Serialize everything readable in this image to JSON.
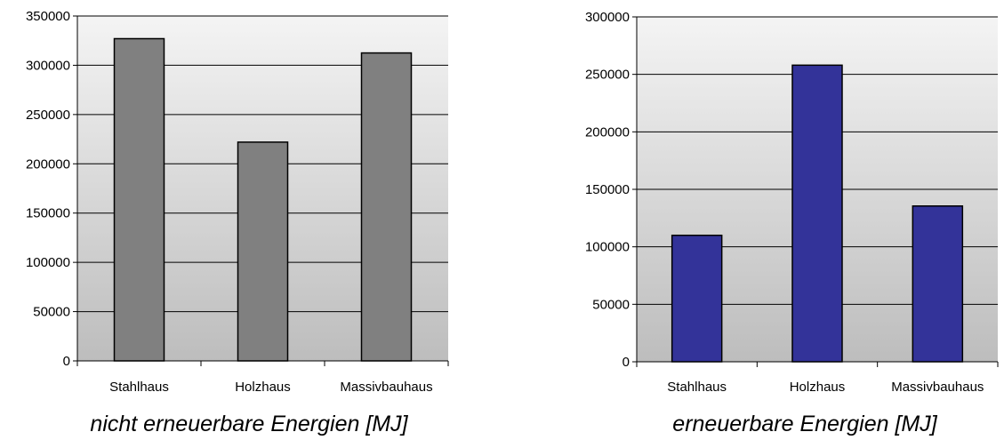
{
  "chart_data": [
    {
      "type": "bar",
      "title": "nicht erneuerbare Energien [MJ]",
      "categories": [
        "Stahlhaus",
        "Holzhaus",
        "Massivbauhaus"
      ],
      "values": [
        327000,
        222000,
        312500
      ],
      "ylim": [
        0,
        350000
      ],
      "yticks": [
        0,
        50000,
        100000,
        150000,
        200000,
        250000,
        300000,
        350000
      ],
      "grid": true,
      "bar_color": "#808080"
    },
    {
      "type": "bar",
      "title": "erneuerbare Energien [MJ]",
      "categories": [
        "Stahlhaus",
        "Holzhaus",
        "Massivbauhaus"
      ],
      "values": [
        110000,
        258000,
        135500
      ],
      "ylim": [
        0,
        300000
      ],
      "yticks": [
        0,
        50000,
        100000,
        150000,
        200000,
        250000,
        300000
      ],
      "grid": true,
      "bar_color": "#333399"
    }
  ]
}
